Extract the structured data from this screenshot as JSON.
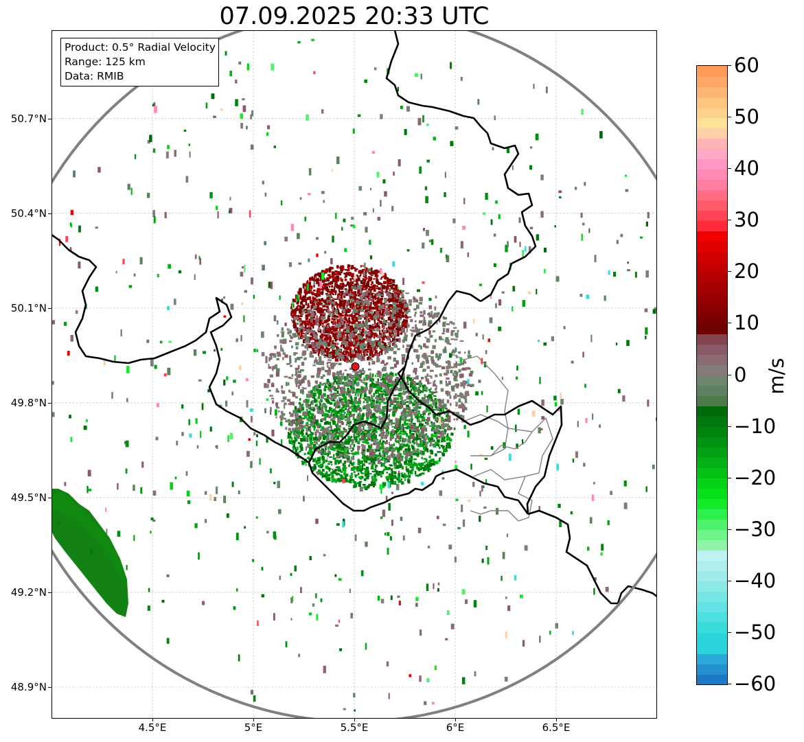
{
  "figure": {
    "title": "07.09.2025 20:33 UTC"
  },
  "info_box": {
    "product": "Product: 0.5° Radial Velocity",
    "range": "Range: 125 km",
    "data": "Data: RMIB"
  },
  "map": {
    "lon_range": [
      4.0,
      7.0
    ],
    "lat_range": [
      48.8,
      50.98
    ],
    "x_ticks": [
      {
        "value": 4.5,
        "label": "4.5°E"
      },
      {
        "value": 5.0,
        "label": "5°E"
      },
      {
        "value": 5.5,
        "label": "5.5°E"
      },
      {
        "value": 6.0,
        "label": "6°E"
      },
      {
        "value": 6.5,
        "label": "6.5°E"
      }
    ],
    "y_ticks": [
      {
        "value": 48.9,
        "label": "48.9°N"
      },
      {
        "value": 49.2,
        "label": "49.2°N"
      },
      {
        "value": 49.5,
        "label": "49.5°N"
      },
      {
        "value": 49.8,
        "label": "49.8°N"
      },
      {
        "value": 50.1,
        "label": "50.1°N"
      },
      {
        "value": 50.4,
        "label": "50.4°N"
      },
      {
        "value": 50.7,
        "label": "50.7°N"
      }
    ],
    "grid": true,
    "radar_site": {
      "lon": 5.505,
      "lat": 49.915,
      "color": "#e8141b"
    },
    "range_km": 125,
    "range_ring_color": "#808080",
    "border_color": "#000000",
    "subregion_border_color": "#808080"
  },
  "colorbar": {
    "unit": "m/s",
    "min": -60,
    "max": 60,
    "ticks": [
      {
        "value": 60,
        "label": "60"
      },
      {
        "value": 50,
        "label": "50"
      },
      {
        "value": 40,
        "label": "40"
      },
      {
        "value": 30,
        "label": "30"
      },
      {
        "value": 20,
        "label": "20"
      },
      {
        "value": 10,
        "label": "10"
      },
      {
        "value": 0,
        "label": "0"
      },
      {
        "value": -10,
        "label": "−10"
      },
      {
        "value": -20,
        "label": "−20"
      },
      {
        "value": -30,
        "label": "−30"
      },
      {
        "value": -40,
        "label": "−40"
      },
      {
        "value": -50,
        "label": "−50"
      },
      {
        "value": -60,
        "label": "−60"
      }
    ],
    "stops": [
      {
        "from": -60,
        "to": -58,
        "color": "#1f78c4"
      },
      {
        "from": -58,
        "to": -56,
        "color": "#2590cf"
      },
      {
        "from": -56,
        "to": -54,
        "color": "#2aa9d8"
      },
      {
        "from": -54,
        "to": -50,
        "color": "#2ad4dc"
      },
      {
        "from": -50,
        "to": -48,
        "color": "#38dcdc"
      },
      {
        "from": -48,
        "to": -46,
        "color": "#4ddfdf"
      },
      {
        "from": -46,
        "to": -44,
        "color": "#62e2e2"
      },
      {
        "from": -44,
        "to": -42,
        "color": "#78e5e5"
      },
      {
        "from": -42,
        "to": -40,
        "color": "#8de8e8"
      },
      {
        "from": -40,
        "to": -38,
        "color": "#a0eaea"
      },
      {
        "from": -38,
        "to": -36,
        "color": "#b0eeee"
      },
      {
        "from": -36,
        "to": -34,
        "color": "#bef1f1"
      },
      {
        "from": -34,
        "to": -32,
        "color": "#8ef5a8"
      },
      {
        "from": -32,
        "to": -30,
        "color": "#6ef589"
      },
      {
        "from": -30,
        "to": -28,
        "color": "#4ef36b"
      },
      {
        "from": -28,
        "to": -26,
        "color": "#2df04d"
      },
      {
        "from": -26,
        "to": -24,
        "color": "#12ea2a"
      },
      {
        "from": -24,
        "to": -22,
        "color": "#08df1a"
      },
      {
        "from": -22,
        "to": -20,
        "color": "#05d117"
      },
      {
        "from": -20,
        "to": -18,
        "color": "#04c115"
      },
      {
        "from": -18,
        "to": -16,
        "color": "#03b114"
      },
      {
        "from": -16,
        "to": -14,
        "color": "#02a112"
      },
      {
        "from": -14,
        "to": -12,
        "color": "#019110"
      },
      {
        "from": -12,
        "to": -10,
        "color": "#01840e"
      },
      {
        "from": -10,
        "to": -8,
        "color": "#00770c"
      },
      {
        "from": -8,
        "to": -6,
        "color": "#006b0a"
      },
      {
        "from": -6,
        "to": -4,
        "color": "#4d7a49"
      },
      {
        "from": -4,
        "to": -2,
        "color": "#5e8260"
      },
      {
        "from": -2,
        "to": 0,
        "color": "#6f8570"
      },
      {
        "from": 0,
        "to": 2,
        "color": "#857a78"
      },
      {
        "from": 2,
        "to": 4,
        "color": "#8a6b73"
      },
      {
        "from": 4,
        "to": 6,
        "color": "#8a5a66"
      },
      {
        "from": 6,
        "to": 8,
        "color": "#84444e"
      },
      {
        "from": 8,
        "to": 10,
        "color": "#6e0000"
      },
      {
        "from": 10,
        "to": 12,
        "color": "#7a0000"
      },
      {
        "from": 12,
        "to": 14,
        "color": "#880000"
      },
      {
        "from": 14,
        "to": 16,
        "color": "#960000"
      },
      {
        "from": 16,
        "to": 18,
        "color": "#a40000"
      },
      {
        "from": 18,
        "to": 20,
        "color": "#b30000"
      },
      {
        "from": 20,
        "to": 22,
        "color": "#c20000"
      },
      {
        "from": 22,
        "to": 24,
        "color": "#d10000"
      },
      {
        "from": 24,
        "to": 26,
        "color": "#e00000"
      },
      {
        "from": 26,
        "to": 28,
        "color": "#f20000"
      },
      {
        "from": 28,
        "to": 30,
        "color": "#ff2a3a"
      },
      {
        "from": 30,
        "to": 32,
        "color": "#ff4455"
      },
      {
        "from": 32,
        "to": 34,
        "color": "#ff5a6a"
      },
      {
        "from": 34,
        "to": 36,
        "color": "#ff6e82"
      },
      {
        "from": 36,
        "to": 38,
        "color": "#ff7ea0"
      },
      {
        "from": 38,
        "to": 40,
        "color": "#ff88b4"
      },
      {
        "from": 40,
        "to": 42,
        "color": "#ff96c4"
      },
      {
        "from": 42,
        "to": 44,
        "color": "#ffa8c8"
      },
      {
        "from": 44,
        "to": 46,
        "color": "#ffb4b4"
      },
      {
        "from": 46,
        "to": 48,
        "color": "#ffcfa8"
      },
      {
        "from": 48,
        "to": 50,
        "color": "#ffe19a"
      },
      {
        "from": 50,
        "to": 52,
        "color": "#ffd28c"
      },
      {
        "from": 52,
        "to": 54,
        "color": "#ffc480"
      },
      {
        "from": 54,
        "to": 56,
        "color": "#ffb674"
      },
      {
        "from": 56,
        "to": 58,
        "color": "#ffa866"
      },
      {
        "from": 58,
        "to": 60,
        "color": "#ff9a58"
      }
    ]
  }
}
